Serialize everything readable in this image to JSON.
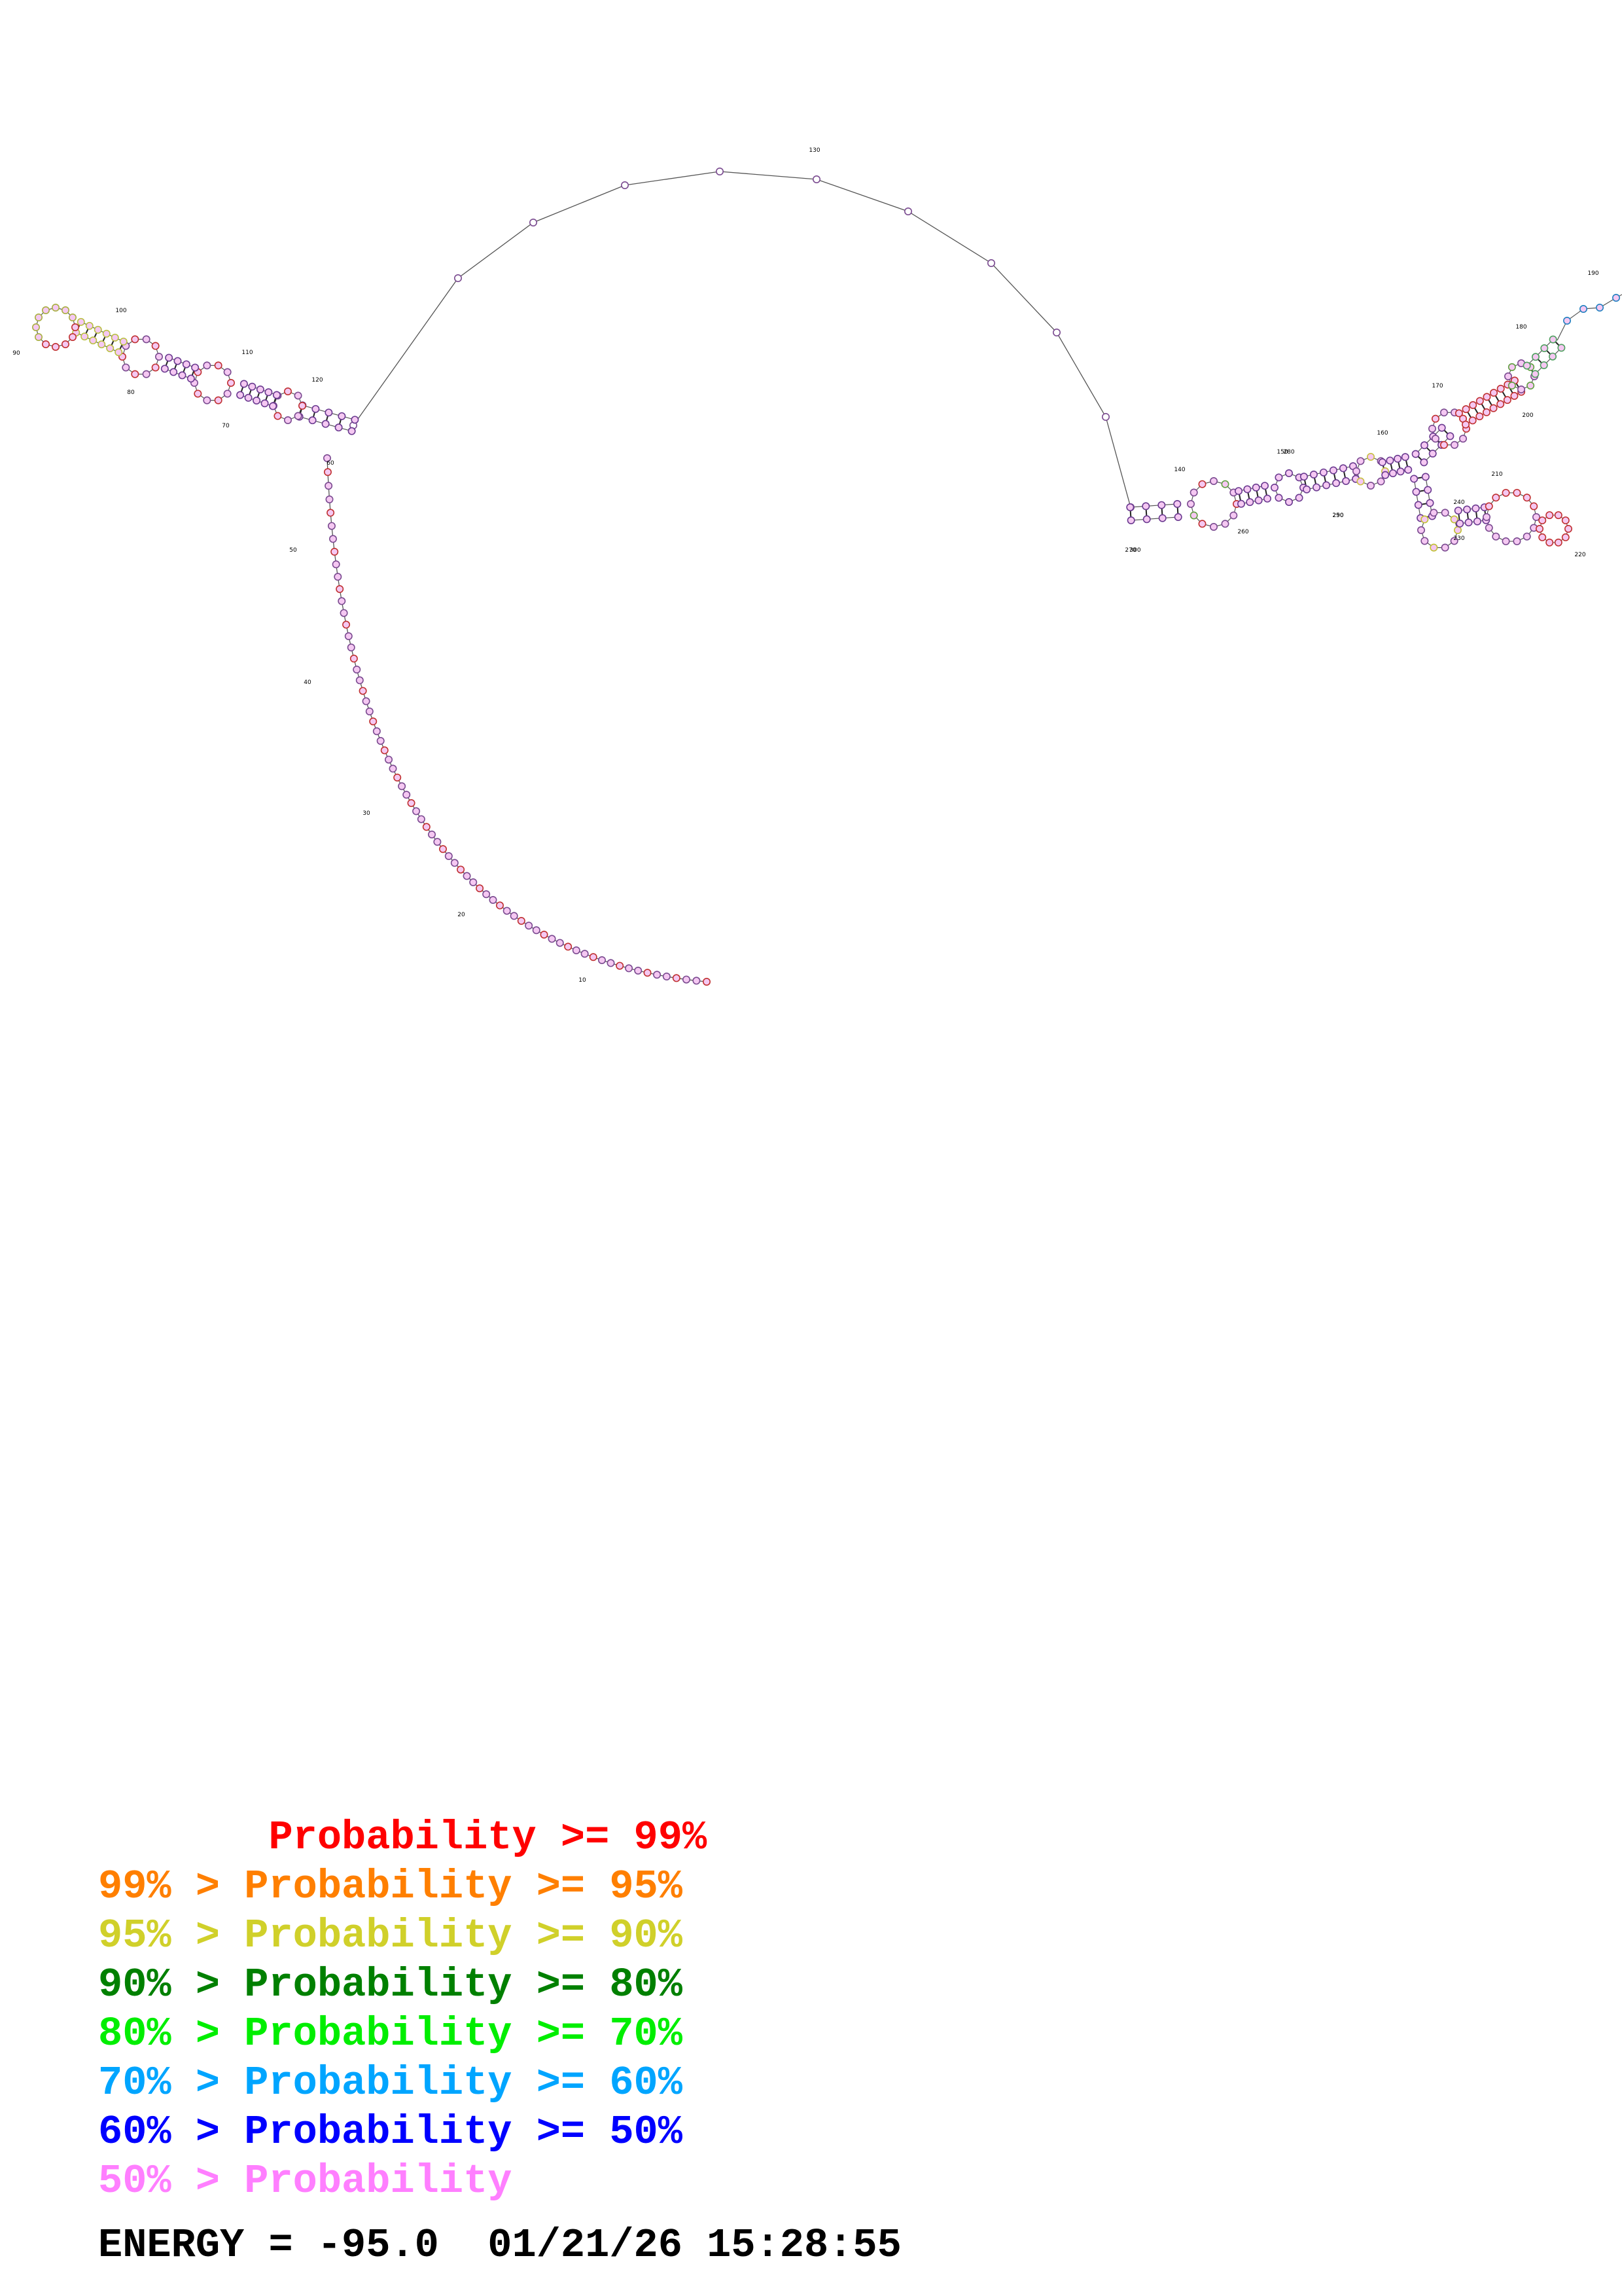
{
  "diagram": {
    "position_labels": [
      "10",
      "20",
      "30",
      "40",
      "50",
      "60",
      "70",
      "80",
      "90",
      "100",
      "110",
      "120",
      "130",
      "140",
      "150",
      "160",
      "170",
      "180",
      "190",
      "200",
      "210",
      "220",
      "230",
      "240",
      "250",
      "260",
      "270",
      "280",
      "290",
      "300"
    ],
    "colors": {
      "backbone": "#555555",
      "nucleotide_fill_default": "#f5c8f2",
      "p99": "#ff0000",
      "p95": "#ff8000",
      "p90": "#d8d800",
      "p80": "#008000",
      "p70": "#00ee00",
      "p60": "#00a0ff",
      "p50": "#0000ff",
      "plow": "#ff7fff"
    }
  },
  "legend": [
    {
      "text": "       Probability >= 99%",
      "color": "#ff0000"
    },
    {
      "text": "99% > Probability >= 95%",
      "color": "#ff7f00"
    },
    {
      "text": "95% > Probability >= 90%",
      "color": "#d0d02a"
    },
    {
      "text": "90% > Probability >= 80%",
      "color": "#008000"
    },
    {
      "text": "80% > Probability >= 70%",
      "color": "#00ee00"
    },
    {
      "text": "70% > Probability >= 60%",
      "color": "#00a5ff"
    },
    {
      "text": "60% > Probability >= 50%",
      "color": "#0000ff"
    },
    {
      "text": "50% > Probability",
      "color": "#ff7fff"
    }
  ],
  "energy_line": "ENERGY = -95.0  01/21/26 15:28:55"
}
